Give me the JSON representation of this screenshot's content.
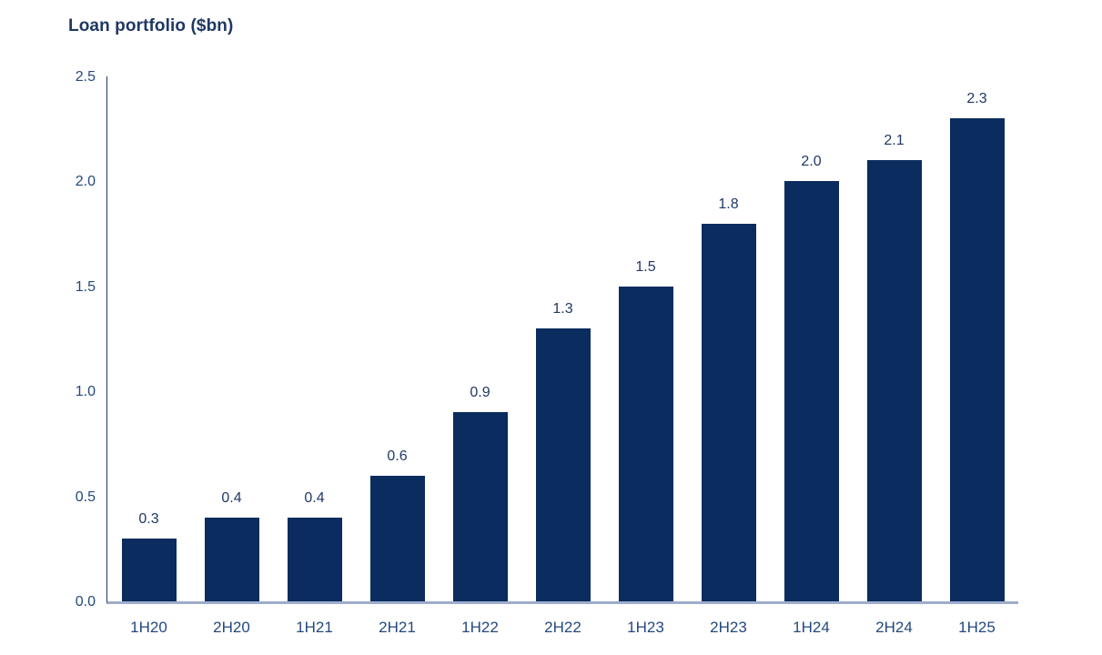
{
  "chart_data": {
    "type": "bar",
    "title": "Loan portfolio ($bn)",
    "categories": [
      "1H20",
      "2H20",
      "1H21",
      "2H21",
      "1H22",
      "2H22",
      "1H23",
      "2H23",
      "1H24",
      "2H24",
      "1H25"
    ],
    "values": [
      0.3,
      0.4,
      0.4,
      0.6,
      0.9,
      1.3,
      1.5,
      1.8,
      2.0,
      2.1,
      2.3
    ],
    "value_labels": [
      "0.3",
      "0.4",
      "0.4",
      "0.6",
      "0.9",
      "1.3",
      "1.5",
      "1.8",
      "2.0",
      "2.1",
      "2.3"
    ],
    "xlabel": "",
    "ylabel": "",
    "ylim": [
      0,
      2.5
    ],
    "ytick_labels": [
      "0.0",
      "0.5",
      "1.0",
      "1.5",
      "2.0",
      "2.5"
    ],
    "ytick_values": [
      0,
      0.5,
      1.0,
      1.5,
      2.0,
      2.5
    ],
    "grid": false,
    "legend_position": "none",
    "colors": {
      "bar_fill": "#0A2C5E",
      "title_text": "#1F3864",
      "data_label_text": "#1F3864",
      "tick_label_text": "#23497E",
      "y_axis_line": "#1F3864",
      "x_axis_line": "#9FADCC",
      "background": "#FFFFFF"
    }
  }
}
